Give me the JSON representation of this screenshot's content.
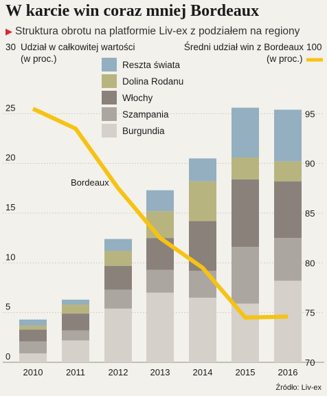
{
  "header": {
    "title": "W karcie win coraz mniej Bordeaux",
    "subtitle": "Struktura obrotu na platformie Liv-ex z podziałem na regiony"
  },
  "source": "Źródło: Liv-ex",
  "colors": {
    "burgundia": "#d5d0ca",
    "szampania": "#aca6a1",
    "wlochy": "#8a817b",
    "dolina_rodanu": "#b8b47f",
    "reszta_swiata": "#93afc0",
    "bordeaux_line": "#f6c314",
    "background": "#f3f1ec"
  },
  "chart_data": {
    "type": "bar",
    "stacked": true,
    "categories": [
      "2010",
      "2011",
      "2012",
      "2013",
      "2014",
      "2015",
      "2016"
    ],
    "left_axis": {
      "label_top": "30",
      "label_line1": "Udział w całkowitej wartości",
      "label_line2": "(w proc.)",
      "range": [
        0,
        30
      ],
      "ticks": [
        0,
        5,
        10,
        15,
        20,
        25
      ]
    },
    "right_axis": {
      "label_line1": "Średni udział win z Bordeaux",
      "label_top": "100",
      "label_line2": "(w proc.)",
      "range": [
        70,
        100
      ],
      "ticks": [
        70,
        75,
        80,
        85,
        90,
        95
      ]
    },
    "series": [
      {
        "name": "Burgundia",
        "key": "burgundia",
        "values": [
          0.9,
          2.2,
          5.4,
          7.0,
          6.5,
          5.9,
          8.2
        ]
      },
      {
        "name": "Szampania",
        "key": "szampania",
        "values": [
          1.2,
          1.0,
          1.9,
          2.3,
          2.7,
          5.7,
          4.3
        ]
      },
      {
        "name": "Włochy",
        "key": "wlochy",
        "values": [
          1.2,
          1.7,
          2.4,
          3.2,
          5.0,
          6.8,
          5.7
        ]
      },
      {
        "name": "Dolina Rodanu",
        "key": "dolina_rodanu",
        "values": [
          0.4,
          0.9,
          1.5,
          2.7,
          4.0,
          2.2,
          2.0
        ]
      },
      {
        "name": "Reszta świata",
        "key": "reszta_swiata",
        "values": [
          0.6,
          0.5,
          1.2,
          2.1,
          2.3,
          5.0,
          5.2
        ]
      }
    ],
    "line": {
      "name": "Bordeaux",
      "axis": "right",
      "values": [
        95.5,
        93.5,
        87.5,
        82.5,
        79.5,
        74.5,
        74.6
      ]
    },
    "legend_position": "top-center"
  }
}
